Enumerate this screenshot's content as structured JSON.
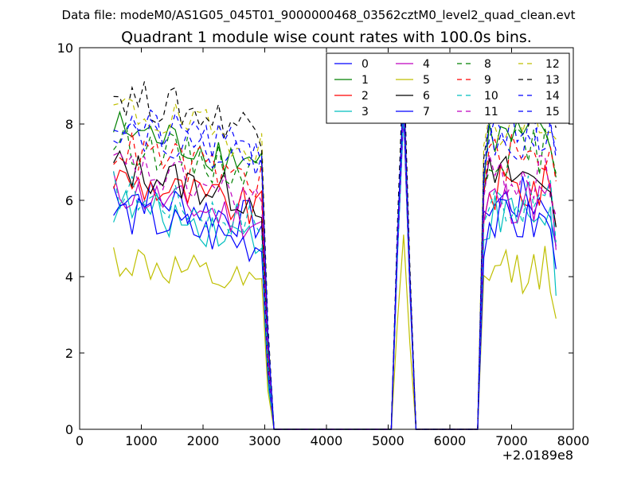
{
  "chart_data": {
    "type": "line",
    "suptitle": "Data file: modeM0/AS1G05_045T01_9000000468_03562cztM0_level2_quad_clean.evt",
    "title": "Quadrant 1 module wise count rates with 100.0s bins.",
    "xlabel": "",
    "ylabel": "",
    "x_offset_label": "+2.0189e8",
    "xlim": [
      0,
      8000
    ],
    "ylim": [
      0,
      10
    ],
    "x_ticks": [
      0,
      1000,
      2000,
      3000,
      4000,
      5000,
      6000,
      7000,
      8000
    ],
    "y_ticks": [
      0,
      2,
      4,
      6,
      8,
      10
    ],
    "x_tick_labels": [
      "0",
      "1000",
      "2000",
      "3000",
      "4000",
      "5000",
      "6000",
      "7000",
      "8000"
    ],
    "y_tick_labels": [
      "0",
      "2",
      "4",
      "6",
      "8",
      "10"
    ],
    "legend_position": "top-right",
    "segments": [
      {
        "x_start": 550,
        "x_step": 100,
        "count": 25
      },
      {
        "x_start": 3050,
        "x_step": 100,
        "count": 3,
        "zero_tail": true
      },
      {
        "x_start": 5050,
        "x_step": 100,
        "count": 4,
        "peak": true
      },
      {
        "x_start": 5450,
        "x_step": 100,
        "count": 10,
        "zero": true
      },
      {
        "x_start": 6450,
        "x_step": 100,
        "count": 14
      }
    ],
    "series": [
      {
        "name": "0",
        "color": "#0000ff",
        "dash": "solid",
        "base": 6.3,
        "peak": 8.4,
        "tail": 4.8
      },
      {
        "name": "1",
        "color": "#008000",
        "dash": "solid",
        "base": 7.9,
        "peak": 8.8,
        "tail": 6.6
      },
      {
        "name": "2",
        "color": "#ff0000",
        "dash": "solid",
        "base": 6.6,
        "peak": 8.6,
        "tail": 5.3
      },
      {
        "name": "3",
        "color": "#00bfbf",
        "dash": "solid",
        "base": 5.9,
        "peak": 8.2,
        "tail": 3.5
      },
      {
        "name": "4",
        "color": "#bf00bf",
        "dash": "solid",
        "base": 6.3,
        "peak": 8.5,
        "tail": 4.7
      },
      {
        "name": "5",
        "color": "#bfbf00",
        "dash": "solid",
        "base": 4.5,
        "peak": 5.1,
        "tail": 2.9
      },
      {
        "name": "6",
        "color": "#000000",
        "dash": "solid",
        "base": 6.9,
        "peak": 9.0,
        "tail": 5.3
      },
      {
        "name": "7",
        "color": "#0000ff",
        "dash": "solid",
        "base": 5.7,
        "peak": 8.3,
        "tail": 4.2
      },
      {
        "name": "8",
        "color": "#008000",
        "dash": "dashed",
        "base": 7.6,
        "peak": 8.9,
        "tail": 6.7
      },
      {
        "name": "9",
        "color": "#ff0000",
        "dash": "dashed",
        "base": 7.4,
        "peak": 8.7,
        "tail": 6.5
      },
      {
        "name": "10",
        "color": "#00bfbf",
        "dash": "dashed",
        "base": 6.3,
        "peak": 8.4,
        "tail": 4.9
      },
      {
        "name": "11",
        "color": "#bf00bf",
        "dash": "dashed",
        "base": 6.9,
        "peak": 8.6,
        "tail": 5.6
      },
      {
        "name": "12",
        "color": "#bfbf00",
        "dash": "dashed",
        "base": 8.4,
        "peak": 9.3,
        "tail": 7.6
      },
      {
        "name": "13",
        "color": "#000000",
        "dash": "dashed",
        "base": 8.8,
        "peak": 9.7,
        "tail": 7.9
      },
      {
        "name": "14",
        "color": "#0000ff",
        "dash": "dashed",
        "base": 8.1,
        "peak": 9.1,
        "tail": 7.3
      },
      {
        "name": "15",
        "color": "#0000ff",
        "dash": "dashed",
        "base": 8.0,
        "peak": 9.0,
        "tail": 7.1
      }
    ]
  }
}
